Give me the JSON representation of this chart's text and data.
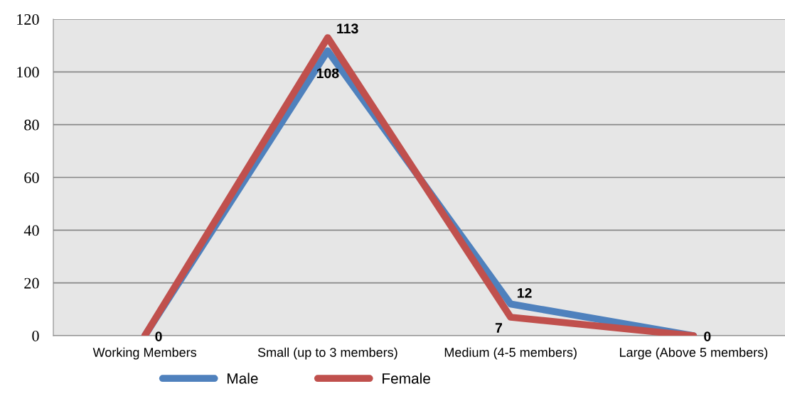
{
  "chart_data": {
    "type": "line",
    "categories": [
      "Working Members",
      "Small (up to 3 members)",
      "Medium (4-5 members)",
      "Large (Above 5 members)"
    ],
    "series": [
      {
        "name": "Male",
        "color": "#4f81bd",
        "values": [
          0,
          108,
          12,
          0
        ],
        "value_labels": [
          "0",
          "108",
          "12",
          "0"
        ]
      },
      {
        "name": "Female",
        "color": "#c0504d",
        "values": [
          0,
          113,
          7,
          0
        ],
        "value_labels": [
          null,
          "113",
          "7",
          null
        ]
      }
    ],
    "ylim": [
      0,
      120
    ],
    "yticks": [
      0,
      20,
      40,
      60,
      80,
      100,
      120
    ],
    "grid": "y",
    "legend": "bottom",
    "marker": "none",
    "line_style": "solid"
  }
}
